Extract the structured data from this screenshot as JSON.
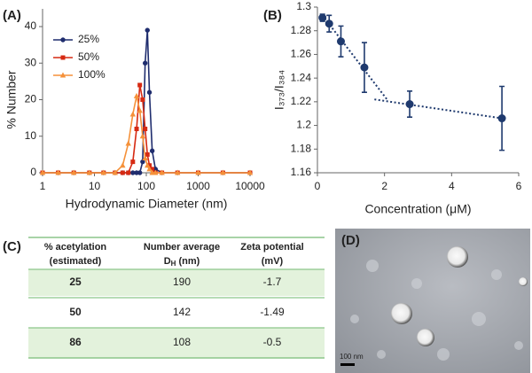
{
  "chart_data": [
    {
      "type": "line",
      "panel_label": "(A)",
      "x_label": "Hydrodynamic Diameter (nm)",
      "y_label": "% Number",
      "x": [
        1,
        2,
        4,
        8,
        15,
        25,
        35,
        45,
        55,
        65,
        75,
        85,
        95,
        105,
        115,
        130,
        150,
        200,
        400,
        1000,
        3000,
        10000
      ],
      "series": [
        {
          "name": "25%",
          "color": "#1f2d6e",
          "marker": "circle",
          "values": [
            0,
            0,
            0,
            0,
            0,
            0,
            0,
            0,
            0,
            0,
            0,
            3,
            30,
            39,
            22,
            6,
            1,
            0,
            0,
            0,
            0,
            0
          ]
        },
        {
          "name": "50%",
          "color": "#d62a12",
          "marker": "square",
          "values": [
            0,
            0,
            0,
            0,
            0,
            0,
            0,
            0,
            3,
            12,
            24,
            20,
            12,
            5,
            2,
            1,
            0,
            0,
            0,
            0,
            0,
            0
          ]
        },
        {
          "name": "100%",
          "color": "#f5913a",
          "marker": "triangle",
          "values": [
            0,
            0,
            0,
            0,
            0,
            0,
            2,
            8,
            16,
            21,
            17,
            10,
            4,
            2,
            1,
            0,
            0,
            0,
            0,
            0,
            0,
            0
          ]
        }
      ],
      "log_x": true,
      "xlim": [
        1,
        10000
      ],
      "xticks": [
        1,
        10,
        100,
        1000,
        10000
      ],
      "ylim": [
        0,
        40
      ],
      "yticks": [
        0,
        10,
        20,
        30,
        40
      ],
      "legend": "top-left"
    },
    {
      "type": "scatter",
      "panel_label": "(B)",
      "x_label": "Concentration (μM)",
      "y_label": "I₃₇₃/I₃₈₄",
      "color": "#1f3a6e",
      "x": [
        0.15,
        0.35,
        0.7,
        1.4,
        2.75,
        5.5
      ],
      "values": [
        1.291,
        1.286,
        1.271,
        1.249,
        1.218,
        1.206
      ],
      "errors": [
        0.003,
        0.007,
        0.013,
        0.021,
        0.011,
        0.027
      ],
      "trend_lines": [
        {
          "x": [
            0.15,
            2.1
          ],
          "y": [
            1.293,
            1.221
          ]
        },
        {
          "x": [
            1.7,
            5.5
          ],
          "y": [
            1.222,
            1.206
          ]
        }
      ],
      "xlim": [
        0,
        6
      ],
      "xticks": [
        0,
        2,
        4,
        6
      ],
      "ylim": [
        1.16,
        1.3
      ],
      "yticks": [
        1.16,
        1.18,
        1.2,
        1.22,
        1.24,
        1.26,
        1.28,
        1.3
      ]
    }
  ],
  "table": {
    "panel_label": "(C)",
    "header": [
      [
        "% acetylation",
        "(estimated)"
      ],
      [
        "Number average",
        "D",
        "H",
        " (nm)"
      ],
      [
        "Zeta potential",
        "(mV)"
      ]
    ],
    "rows": [
      [
        "25",
        "190",
        "-1.7"
      ],
      [
        "50",
        "142",
        "-1.49"
      ],
      [
        "86",
        "108",
        "-0.5"
      ]
    ],
    "shaded": [
      true,
      false,
      true
    ]
  },
  "micrograph": {
    "panel_label": "(D)",
    "scale_bar": "100 nm"
  }
}
